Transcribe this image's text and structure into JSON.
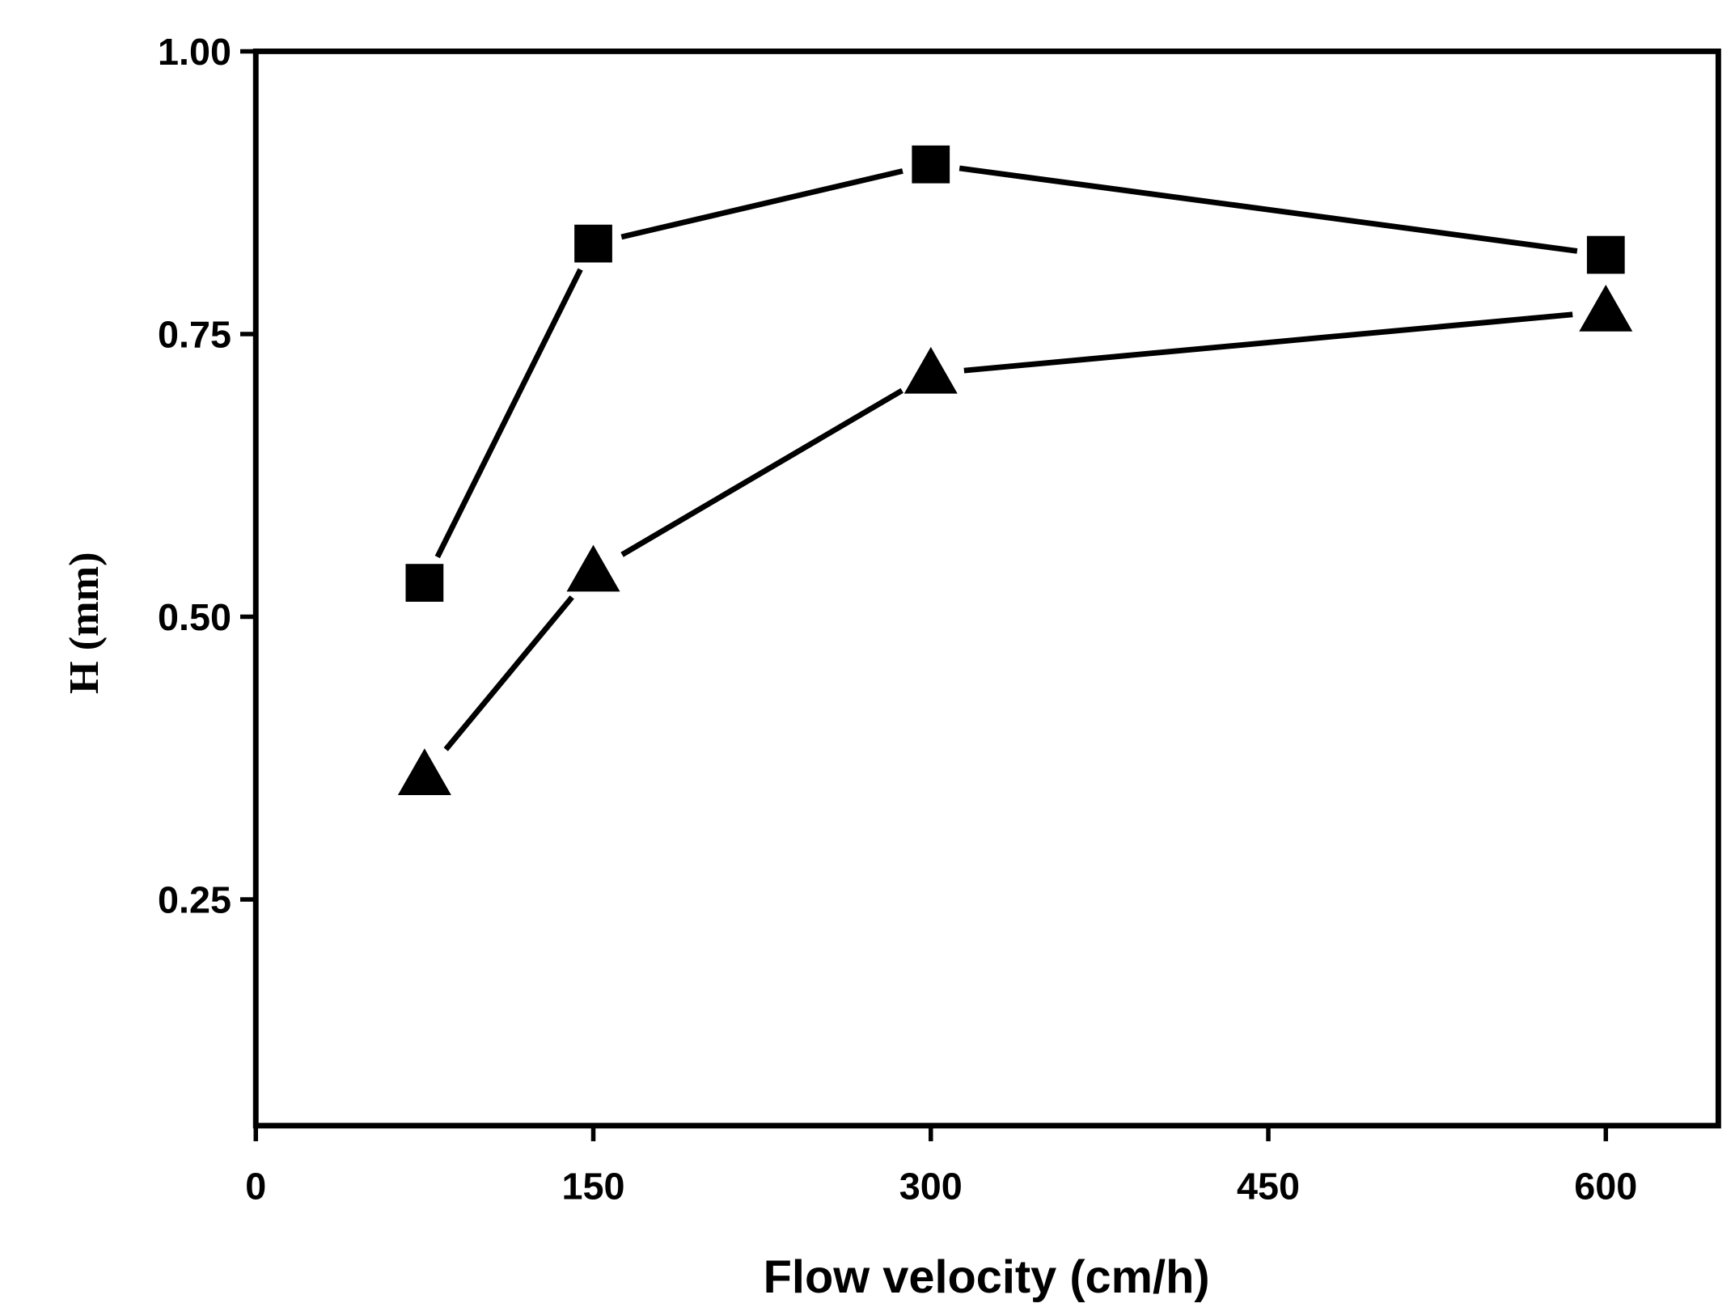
{
  "chart_data": {
    "type": "scatter",
    "title": "",
    "xlabel": "Flow velocity (cm/h)",
    "ylabel": "H (mm)",
    "xlim": [
      0,
      650
    ],
    "ylim": [
      0.05,
      1.0
    ],
    "xticks": [
      0,
      150,
      300,
      450,
      600
    ],
    "xtick_labels": [
      "0",
      "150",
      "300",
      "450",
      "600"
    ],
    "yticks": [
      0.25,
      0.5,
      0.75,
      1.0
    ],
    "ytick_labels": [
      "0.25",
      "0.50",
      "0.75",
      "1.00"
    ],
    "grid": false,
    "legend": "none",
    "series": [
      {
        "name": "square",
        "marker": "square",
        "x": [
          75,
          150,
          300,
          600
        ],
        "y": [
          0.53,
          0.83,
          0.9,
          0.82
        ],
        "color": "#000000"
      },
      {
        "name": "triangle",
        "marker": "triangle",
        "x": [
          75,
          150,
          300,
          600
        ],
        "y": [
          0.36,
          0.54,
          0.715,
          0.77
        ],
        "color": "#000000"
      }
    ]
  }
}
